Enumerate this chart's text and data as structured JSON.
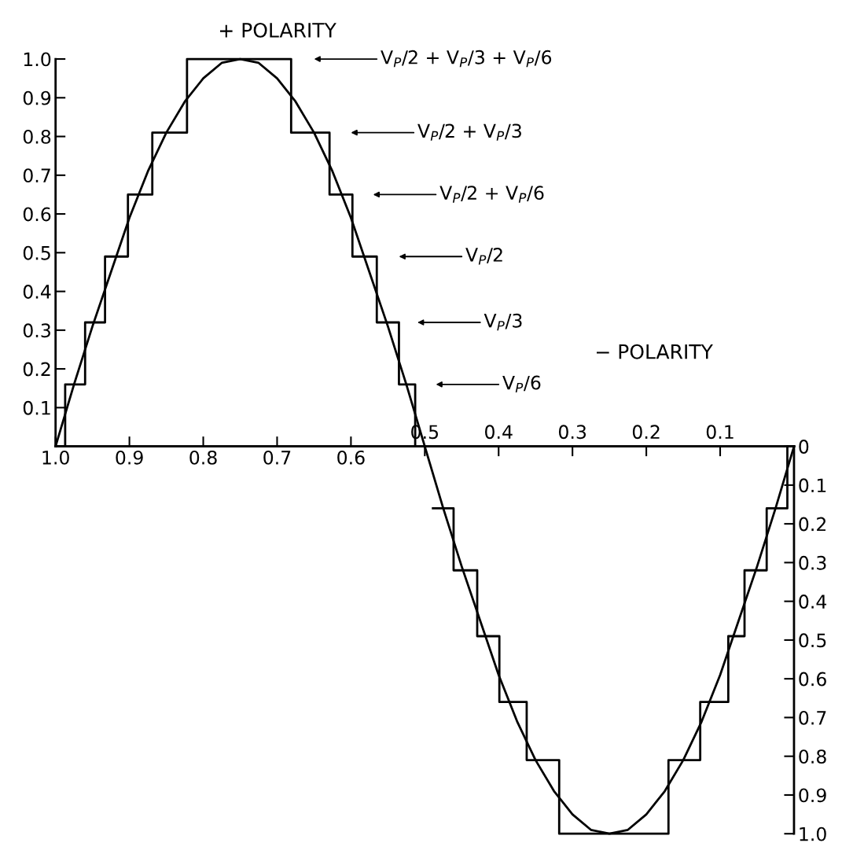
{
  "chart_data": [
    {
      "type": "line",
      "ylabel": "+ POLARITY",
      "xlim": [
        1.0,
        0
      ],
      "xticks": [
        {
          "value": 1.0,
          "label": "1.0"
        },
        0.9,
        0.8,
        0.7,
        0.6
      ],
      "ylim": [
        0,
        1.0
      ],
      "yticks": [
        0.1,
        0.2,
        0.3,
        0.4,
        0.5,
        0.6,
        0.7,
        0.8,
        0.9,
        {
          "value": 1.0,
          "label": "1.0"
        }
      ],
      "grid": false,
      "legend": false,
      "marker": "none",
      "line_style": "solid",
      "series": [
        {
          "color": "#000000",
          "x": [
            1.0,
            0.975,
            0.95,
            0.925,
            0.9,
            0.875,
            0.85,
            0.825,
            0.8,
            0.775,
            0.75,
            0.725,
            0.7,
            0.675,
            0.65,
            0.625,
            0.6,
            0.575,
            0.55,
            0.525,
            0.5
          ],
          "values": [
            0,
            0.16,
            0.31,
            0.45,
            0.59,
            0.71,
            0.81,
            0.89,
            0.95,
            0.99,
            1.0,
            0.99,
            0.95,
            0.89,
            0.81,
            0.71,
            0.59,
            0.45,
            0.31,
            0.16,
            0
          ]
        },
        {
          "type": "step",
          "color": "#000000",
          "x": [
            1.0,
            0.987,
            0.96,
            0.933,
            0.902,
            0.869,
            0.822,
            0.681,
            0.629,
            0.598,
            0.565,
            0.535,
            0.513
          ],
          "values": [
            0,
            0.16,
            0.32,
            0.49,
            0.65,
            0.81,
            1.0,
            0.81,
            0.65,
            0.49,
            0.32,
            0.16,
            0
          ]
        }
      ],
      "annotations": [
        "V$_{P}$/2 + V$_{P}$/3 + V$_{P}$/6",
        "V$_{P}$/2 + V$_{P}$/3",
        "V$_{P}$/2 + V$_{P}$/6",
        "V$_{P}$/2",
        "V$_{P}$/3",
        "V$_{P}$/6"
      ]
    },
    {
      "type": "line",
      "ylabel": "− POLARITY",
      "xlim": [
        1.0,
        0
      ],
      "xticks": [
        0.5,
        0.4,
        0.3,
        0.2,
        0.1
      ],
      "ylim": [
        1.0,
        0
      ],
      "yticks": [
        0,
        0.1,
        0.2,
        0.3,
        0.4,
        0.5,
        0.6,
        0.7,
        0.8,
        0.9,
        {
          "value": 1.0,
          "label": "1.0"
        }
      ],
      "grid": false,
      "legend": false,
      "marker": "none",
      "line_style": "solid",
      "series": [
        {
          "color": "#000000",
          "x": [
            0.5,
            0.475,
            0.45,
            0.425,
            0.4,
            0.375,
            0.35,
            0.325,
            0.3,
            0.275,
            0.25,
            0.225,
            0.2,
            0.175,
            0.15,
            0.125,
            0.1,
            0.075,
            0.05,
            0.025,
            0
          ],
          "values": [
            0,
            0.16,
            0.31,
            0.45,
            0.59,
            0.71,
            0.81,
            0.89,
            0.95,
            0.99,
            1.0,
            0.99,
            0.95,
            0.89,
            0.81,
            0.71,
            0.59,
            0.45,
            0.31,
            0.16,
            0
          ]
        },
        {
          "type": "step",
          "color": "#000000",
          "x": [
            0.489,
            0.461,
            0.429,
            0.399,
            0.362,
            0.318,
            0.17,
            0.127,
            0.089,
            0.067,
            0.037,
            0.009,
            0
          ],
          "values": [
            0.16,
            0.32,
            0.49,
            0.66,
            0.81,
            1.0,
            0.81,
            0.66,
            0.49,
            0.32,
            0.16,
            0,
            0
          ]
        }
      ]
    }
  ]
}
